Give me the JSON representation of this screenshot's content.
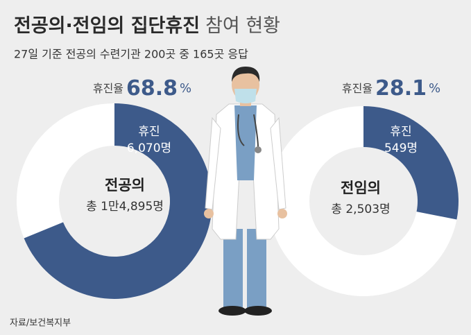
{
  "title_main": "전공의·전임의 집단휴진",
  "title_rest": "참여 현황",
  "subtitle": "27일 기준 전공의 수련기관 200곳 중 165곳 응답",
  "source": "자료/보건복지부",
  "chart_data": [
    {
      "type": "donut",
      "name": "전공의",
      "rate_label": "휴진율",
      "rate": 68.8,
      "rate_unit": "%",
      "segment_label": "휴진",
      "count": 6070,
      "count_label": "6,070명",
      "total": 14895,
      "total_label": "총 1만4,895명",
      "color": "#3d5a8a"
    },
    {
      "type": "donut",
      "name": "전임의",
      "rate_label": "휴진율",
      "rate": 28.1,
      "rate_unit": "%",
      "segment_label": "휴진",
      "count": 549,
      "count_label": "549명",
      "total": 2503,
      "total_label": "총 2,503명",
      "color": "#3d5a8a"
    }
  ]
}
